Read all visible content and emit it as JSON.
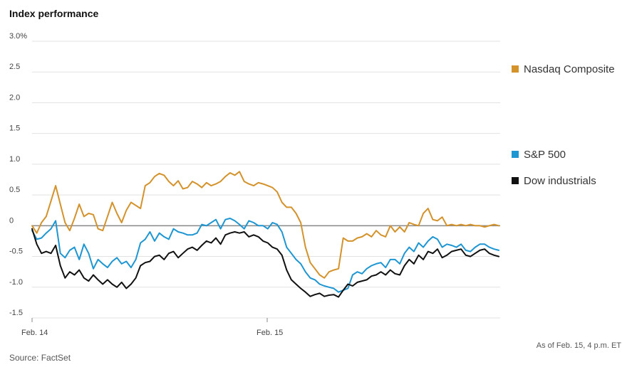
{
  "title": "Index performance",
  "source": "Source: FactSet",
  "as_of": "As of Feb. 15, 4 p.m. ET",
  "chart_data": {
    "type": "line",
    "ylim": [
      -1.5,
      3.0
    ],
    "yticks": [
      {
        "v": 3.0,
        "label": "3.0%"
      },
      {
        "v": 2.5,
        "label": "2.5"
      },
      {
        "v": 2.0,
        "label": "2.0"
      },
      {
        "v": 1.5,
        "label": "1.5"
      },
      {
        "v": 1.0,
        "label": "1.0"
      },
      {
        "v": 0.5,
        "label": "0.5"
      },
      {
        "v": 0.0,
        "label": "0"
      },
      {
        "v": -0.5,
        "label": "-0.5"
      },
      {
        "v": -1.0,
        "label": "-1.0"
      },
      {
        "v": -1.5,
        "label": "-1.5"
      }
    ],
    "xlim": [
      0,
      100
    ],
    "xticks": [
      {
        "v": 0,
        "label": "Feb. 14"
      },
      {
        "v": 50,
        "label": "Feb. 15"
      }
    ],
    "grid": true,
    "legend": "right",
    "series": [
      {
        "name": "Nasdaq Composite",
        "color": "#d4922b",
        "values": [
          0.0,
          -0.12,
          0.05,
          0.15,
          0.4,
          0.65,
          0.35,
          0.05,
          -0.08,
          0.12,
          0.35,
          0.15,
          0.2,
          0.18,
          -0.05,
          -0.08,
          0.15,
          0.38,
          0.2,
          0.05,
          0.25,
          0.38,
          0.33,
          0.28,
          0.65,
          0.7,
          0.8,
          0.85,
          0.82,
          0.72,
          0.65,
          0.73,
          0.6,
          0.62,
          0.72,
          0.68,
          0.62,
          0.7,
          0.65,
          0.68,
          0.72,
          0.8,
          0.86,
          0.82,
          0.88,
          0.72,
          0.68,
          0.65,
          0.7,
          0.68,
          0.65,
          0.62,
          0.55,
          0.38,
          0.3,
          0.3,
          0.2,
          0.05,
          -0.35,
          -0.6,
          -0.7,
          -0.8,
          -0.85,
          -0.75,
          -0.72,
          -0.7,
          -0.2,
          -0.25,
          -0.25,
          -0.2,
          -0.18,
          -0.13,
          -0.18,
          -0.08,
          -0.15,
          -0.18,
          0.0,
          -0.1,
          -0.02,
          -0.1,
          0.05,
          0.02,
          0.0,
          0.2,
          0.28,
          0.1,
          0.08,
          0.14,
          0.0,
          0.02,
          0.0,
          0.02,
          0.0,
          0.02,
          0.0,
          0.0,
          -0.02,
          0.0,
          0.02,
          0.0
        ]
      },
      {
        "name": "S&P 500",
        "color": "#1e96d2",
        "values": [
          -0.08,
          -0.22,
          -0.2,
          -0.12,
          -0.05,
          0.08,
          -0.45,
          -0.52,
          -0.4,
          -0.35,
          -0.55,
          -0.3,
          -0.45,
          -0.7,
          -0.55,
          -0.62,
          -0.68,
          -0.58,
          -0.52,
          -0.62,
          -0.58,
          -0.68,
          -0.55,
          -0.28,
          -0.22,
          -0.1,
          -0.25,
          -0.12,
          -0.18,
          -0.22,
          -0.05,
          -0.1,
          -0.12,
          -0.15,
          -0.15,
          -0.12,
          0.02,
          0.0,
          0.05,
          0.1,
          -0.05,
          0.1,
          0.12,
          0.08,
          0.02,
          -0.05,
          0.08,
          0.05,
          0.0,
          0.0,
          -0.05,
          0.05,
          0.02,
          -0.1,
          -0.35,
          -0.45,
          -0.55,
          -0.62,
          -0.75,
          -0.85,
          -0.88,
          -0.95,
          -0.98,
          -1.0,
          -1.02,
          -1.08,
          -1.05,
          -1.02,
          -0.8,
          -0.75,
          -0.78,
          -0.7,
          -0.65,
          -0.62,
          -0.6,
          -0.68,
          -0.55,
          -0.55,
          -0.62,
          -0.45,
          -0.35,
          -0.42,
          -0.28,
          -0.35,
          -0.25,
          -0.18,
          -0.22,
          -0.35,
          -0.3,
          -0.32,
          -0.35,
          -0.3,
          -0.4,
          -0.42,
          -0.35,
          -0.3,
          -0.3,
          -0.35,
          -0.38,
          -0.4
        ]
      },
      {
        "name": "Dow industrials",
        "color": "#111111",
        "values": [
          -0.05,
          -0.3,
          -0.45,
          -0.42,
          -0.45,
          -0.32,
          -0.65,
          -0.85,
          -0.75,
          -0.8,
          -0.72,
          -0.85,
          -0.9,
          -0.8,
          -0.88,
          -0.95,
          -0.88,
          -0.95,
          -1.0,
          -0.92,
          -1.02,
          -0.95,
          -0.85,
          -0.65,
          -0.6,
          -0.58,
          -0.5,
          -0.48,
          -0.55,
          -0.45,
          -0.42,
          -0.52,
          -0.45,
          -0.38,
          -0.35,
          -0.4,
          -0.32,
          -0.25,
          -0.28,
          -0.2,
          -0.3,
          -0.15,
          -0.12,
          -0.1,
          -0.12,
          -0.1,
          -0.18,
          -0.15,
          -0.18,
          -0.25,
          -0.28,
          -0.35,
          -0.38,
          -0.48,
          -0.72,
          -0.88,
          -0.95,
          -1.02,
          -1.08,
          -1.15,
          -1.12,
          -1.1,
          -1.15,
          -1.13,
          -1.12,
          -1.16,
          -1.05,
          -0.95,
          -0.98,
          -0.92,
          -0.9,
          -0.88,
          -0.82,
          -0.8,
          -0.75,
          -0.8,
          -0.72,
          -0.78,
          -0.8,
          -0.65,
          -0.55,
          -0.62,
          -0.48,
          -0.55,
          -0.42,
          -0.45,
          -0.38,
          -0.52,
          -0.48,
          -0.42,
          -0.4,
          -0.38,
          -0.48,
          -0.5,
          -0.45,
          -0.4,
          -0.38,
          -0.45,
          -0.48,
          -0.5
        ]
      }
    ]
  }
}
